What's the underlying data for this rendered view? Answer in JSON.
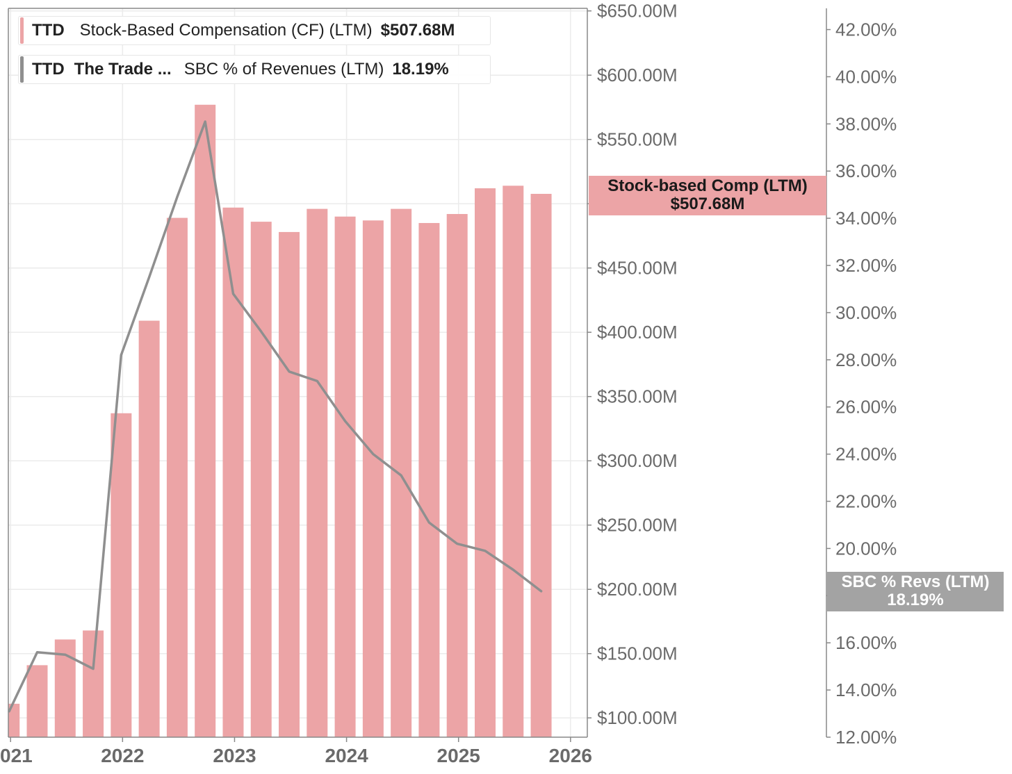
{
  "chart_data": {
    "type": "bar+line",
    "x_ticks": [
      "021",
      "2022",
      "2023",
      "2024",
      "2025",
      "2026"
    ],
    "x_tick_positions": [
      2021.0,
      2022.0,
      2023.0,
      2024.0,
      2025.0,
      2026.0
    ],
    "xlim": [
      2020.98,
      2026.15
    ],
    "left_axis": {
      "ylim": [
        85,
        652
      ],
      "ticks": [
        "$100.00M",
        "$150.00M",
        "$200.00M",
        "$250.00M",
        "$300.00M",
        "$350.00M",
        "$400.00M",
        "$450.00M",
        "$500.00M",
        "$550.00M",
        "$600.00M",
        "$650.00M"
      ],
      "tick_values": [
        100,
        150,
        200,
        250,
        300,
        350,
        400,
        450,
        500,
        550,
        600,
        650
      ]
    },
    "right_axis": {
      "ylim": [
        12,
        42.9
      ],
      "ticks": [
        "12.00%",
        "14.00%",
        "16.00%",
        "18.00%",
        "20.00%",
        "22.00%",
        "24.00%",
        "26.00%",
        "28.00%",
        "30.00%",
        "32.00%",
        "34.00%",
        "36.00%",
        "38.00%",
        "40.00%",
        "42.00%"
      ],
      "tick_values": [
        12,
        14,
        16,
        18,
        20,
        22,
        24,
        26,
        28,
        30,
        32,
        34,
        36,
        38,
        40,
        42
      ]
    },
    "series": [
      {
        "name": "Stock-Based Compensation (CF) (LTM)",
        "kind": "bar",
        "axis": "left",
        "color": "#eca4a6",
        "x": [
          2021.0,
          2021.25,
          2021.5,
          2021.75,
          2022.0,
          2022.25,
          2022.5,
          2022.75,
          2023.0,
          2023.25,
          2023.5,
          2023.75,
          2024.0,
          2024.25,
          2024.5,
          2024.75,
          2025.0,
          2025.25,
          2025.5,
          2025.75
        ],
        "values": [
          111,
          141,
          161,
          168,
          337,
          409,
          489,
          577,
          497,
          486,
          478,
          496,
          490,
          487,
          496,
          485,
          492,
          512,
          514,
          507.68
        ]
      },
      {
        "name": "SBC % of Revenues (LTM)",
        "kind": "line",
        "axis": "right",
        "color": "#8f8f8f",
        "x": [
          2021.0,
          2021.25,
          2021.5,
          2021.75,
          2022.0,
          2022.25,
          2022.5,
          2022.75,
          2023.0,
          2023.25,
          2023.5,
          2023.75,
          2024.0,
          2024.25,
          2024.5,
          2024.75,
          2025.0,
          2025.25,
          2025.5,
          2025.75
        ],
        "values": [
          13.1,
          15.6,
          15.5,
          14.9,
          28.2,
          31.5,
          34.9,
          38.1,
          30.8,
          29.2,
          27.5,
          27.1,
          25.4,
          24.0,
          23.1,
          21.1,
          20.2,
          19.9,
          19.1,
          18.19
        ]
      }
    ]
  },
  "legend": [
    {
      "ticker": "TTD",
      "company": "",
      "metric": "Stock-Based Compensation (CF) (LTM)",
      "value": "$507.68M",
      "color": "#eca4a6"
    },
    {
      "ticker": "TTD",
      "company": "The Trade ...",
      "metric": "SBC % of Revenues (LTM)",
      "value": "18.19%",
      "color": "#8f8f8f"
    }
  ],
  "tags": {
    "sbc": {
      "label": "Stock-based Comp (LTM)",
      "value": "$507.68M"
    },
    "pct": {
      "label": "SBC % Revs (LTM)",
      "value": "18.19%"
    }
  }
}
